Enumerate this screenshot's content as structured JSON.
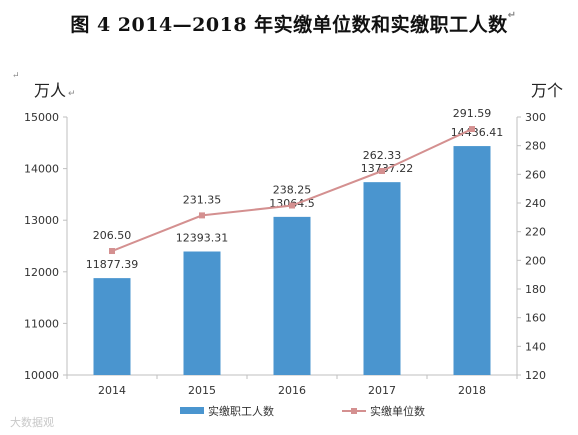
{
  "title": "图 4   2014—2018 年实缴单位数和实缴职工人数",
  "return_mark": "↵",
  "watermark": "大数据观",
  "chart_data": {
    "type": "bar+line",
    "categories": [
      "2014",
      "2015",
      "2016",
      "2017",
      "2018"
    ],
    "left_axis": {
      "unit": "万人",
      "ylim": [
        10000,
        15000
      ],
      "ticks": [
        "10000",
        "11000",
        "12000",
        "13000",
        "14000",
        "15000"
      ]
    },
    "right_axis": {
      "unit": "万个",
      "ylim": [
        120,
        300
      ],
      "ticks": [
        "120",
        "140",
        "160",
        "180",
        "200",
        "220",
        "240",
        "260",
        "280",
        "300"
      ]
    },
    "series": [
      {
        "name": "实缴职工人数",
        "type": "bar",
        "axis": "left",
        "color": "#4a95cf",
        "values": [
          11877.39,
          12393.31,
          13064.5,
          13737.22,
          14436.41
        ],
        "labels": [
          "11877.39",
          "12393.31",
          "13064.5",
          "13737.22",
          "14436.41"
        ]
      },
      {
        "name": "实缴单位数",
        "type": "line",
        "axis": "right",
        "color": "#d49090",
        "values": [
          206.5,
          231.35,
          238.25,
          262.33,
          291.59
        ],
        "labels": [
          "206.50",
          "231.35",
          "238.25",
          "262.33",
          "291.59"
        ]
      }
    ],
    "grid": false,
    "legend": "bottom"
  }
}
